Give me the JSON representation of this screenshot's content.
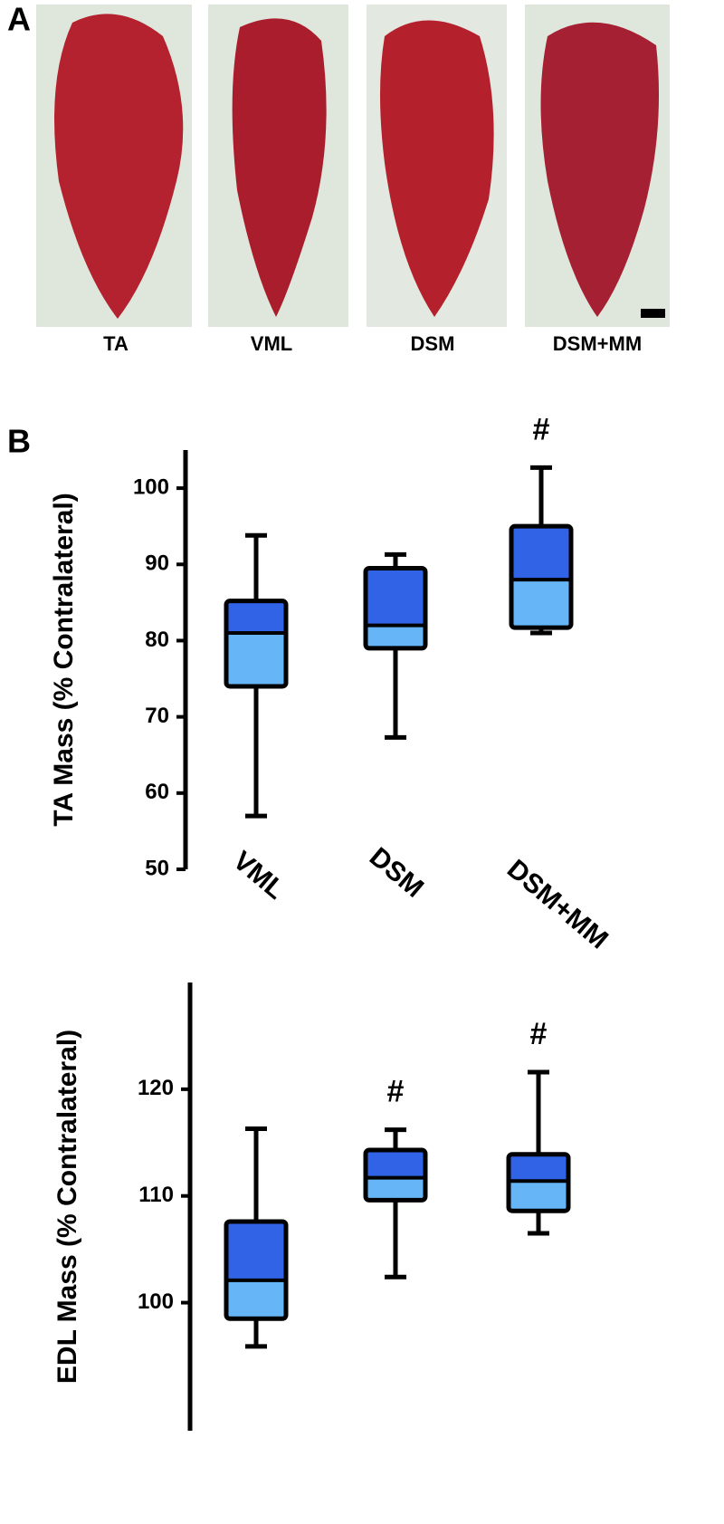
{
  "panel_a": {
    "letter": "A",
    "labels": [
      "TA",
      "VML",
      "DSM",
      "DSM+MM"
    ]
  },
  "panel_b_letter": "B",
  "chart_data": [
    {
      "type": "box",
      "y_label": "TA Mass (% Contralateral)",
      "categories": [
        "VML",
        "DSM",
        "DSM+MM"
      ],
      "boxes": [
        {
          "min": 57,
          "q1": 74,
          "median": 81,
          "q3": 85.2,
          "max": 93.8
        },
        {
          "min": 67.3,
          "q1": 79,
          "median": 82,
          "q3": 89.5,
          "max": 91.3
        },
        {
          "min": 81,
          "q1": 81.7,
          "median": 88,
          "q3": 95,
          "max": 102.7
        }
      ],
      "annotations": [
        null,
        null,
        "#"
      ],
      "upper_color": "#3163e6",
      "lower_color": "#66b5f7",
      "ylim": [
        50,
        105
      ],
      "yticks": [
        50,
        60,
        70,
        80,
        90,
        100
      ],
      "show_categories": true
    },
    {
      "type": "box",
      "y_label": "EDL Mass (% Contralateral)",
      "categories": [
        null,
        null,
        null
      ],
      "boxes": [
        {
          "min": 95.9,
          "q1": 98.5,
          "median": 102.1,
          "q3": 107.6,
          "max": 116.3
        },
        {
          "min": 102.4,
          "q1": 109.6,
          "median": 111.7,
          "q3": 114.3,
          "max": 116.2
        },
        {
          "min": 106.5,
          "q1": 108.6,
          "median": 111.4,
          "q3": 113.9,
          "max": 121.6
        }
      ],
      "annotations": [
        null,
        "#",
        "#"
      ],
      "upper_color": "#3163e6",
      "lower_color": "#66b5f7",
      "ylim": [
        88,
        130
      ],
      "yticks": [
        100,
        110,
        120
      ],
      "show_categories": false
    }
  ]
}
